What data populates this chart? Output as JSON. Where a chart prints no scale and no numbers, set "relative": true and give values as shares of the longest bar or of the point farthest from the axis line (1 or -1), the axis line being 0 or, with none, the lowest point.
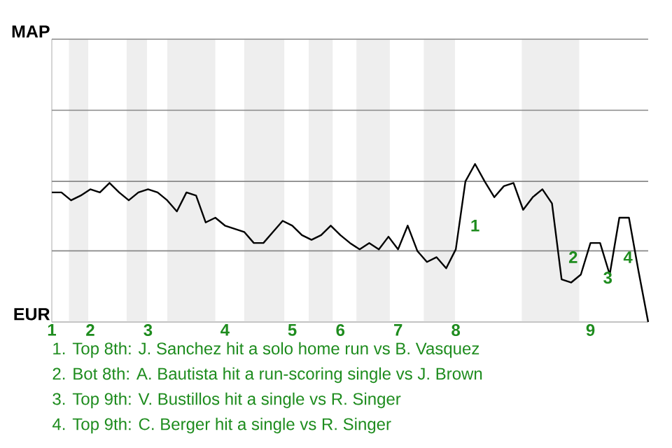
{
  "chart_data": {
    "type": "line",
    "relative": true,
    "categories": [
      "1",
      null,
      null,
      null,
      "2",
      null,
      null,
      null,
      null,
      null,
      "3",
      null,
      null,
      null,
      null,
      null,
      null,
      null,
      "4",
      null,
      null,
      null,
      null,
      null,
      null,
      "5",
      null,
      null,
      null,
      null,
      "6",
      null,
      null,
      null,
      null,
      null,
      "7",
      null,
      null,
      null,
      null,
      null,
      "8",
      null,
      null,
      null,
      null,
      null,
      null,
      null,
      null,
      null,
      null,
      null,
      null,
      null,
      "9",
      null,
      null,
      null,
      null,
      null,
      null
    ],
    "series": [
      {
        "color": "#000000",
        "values": [
          0.82,
          0.82,
          0.77,
          0.8,
          0.84,
          0.82,
          0.88,
          0.82,
          0.77,
          0.82,
          0.84,
          0.82,
          0.77,
          0.7,
          0.82,
          0.8,
          0.63,
          0.66,
          0.61,
          0.59,
          0.57,
          0.5,
          0.5,
          0.57,
          0.64,
          0.61,
          0.55,
          0.52,
          0.55,
          0.61,
          0.55,
          0.5,
          0.46,
          0.5,
          0.46,
          0.54,
          0.46,
          0.61,
          0.45,
          0.38,
          0.41,
          0.34,
          0.46,
          0.89,
          1,
          0.89,
          0.79,
          0.86,
          0.88,
          0.71,
          0.79,
          0.84,
          0.75,
          0.27,
          0.25,
          0.3,
          0.5,
          0.5,
          0.3,
          0.66,
          0.66,
          0.32,
          0
        ]
      }
    ],
    "ref_lines": [
      {
        "axis": "y",
        "value": 0,
        "label": "EUR",
        "color": "#bbbbbb"
      },
      {
        "axis": "y",
        "value": 0.45,
        "color": "#888888"
      },
      {
        "axis": "y",
        "value": 0.89,
        "color": "#888888"
      },
      {
        "axis": "y",
        "value": 1.34,
        "color": "#888888"
      },
      {
        "axis": "y",
        "value": 1.79,
        "label": "MAP",
        "color": "#888888"
      }
    ],
    "annotations": [
      "1",
      "2",
      "3",
      "4",
      "1. Top 8th: J. Sanchez hit a solo home run vs B. Vasquez",
      "2. Bot 8th: A. Bautista hit a run-scoring single vs J. Brown",
      "3. Top 9th: V. Bustillos hit a single vs R. Singer",
      "4. Top 9th: C. Berger hit a single vs R. Singer"
    ]
  }
}
